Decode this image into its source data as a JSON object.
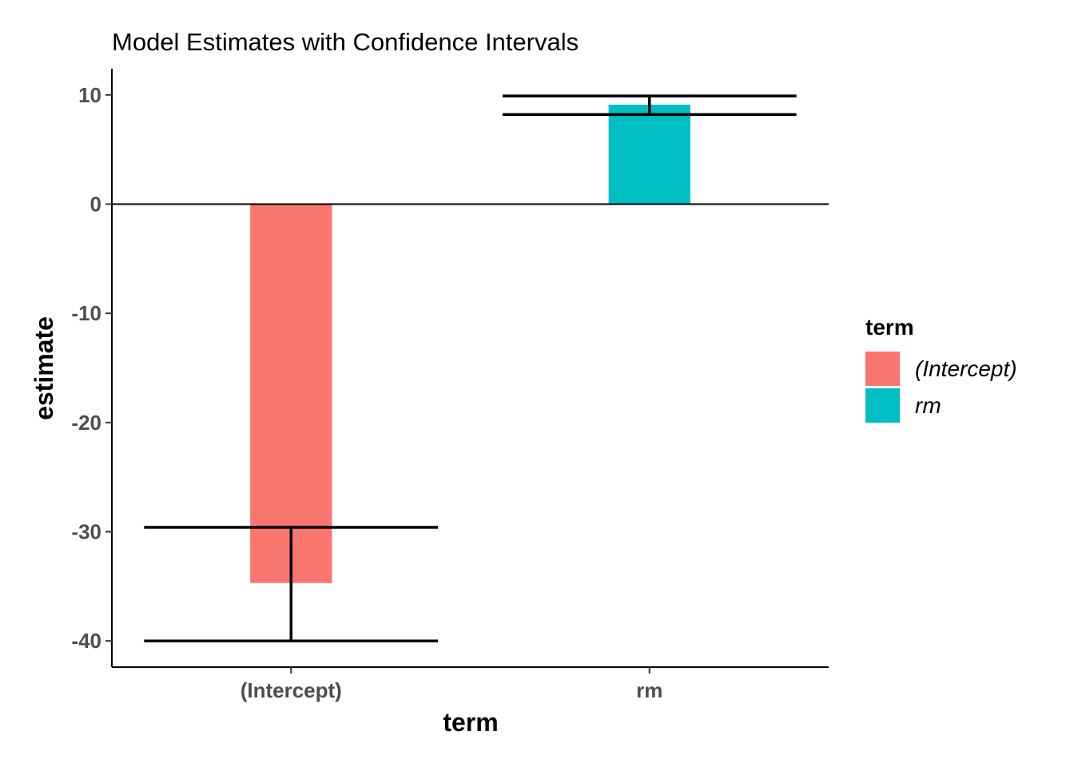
{
  "chart_data": {
    "type": "bar",
    "title": "Model Estimates with Confidence Intervals",
    "xlabel": "term",
    "ylabel": "estimate",
    "categories": [
      "(Intercept)",
      "rm"
    ],
    "values": [
      -34.7,
      9.1
    ],
    "ci_low": [
      -40.0,
      8.2
    ],
    "ci_high": [
      -29.6,
      9.9
    ],
    "colors": [
      "#F8766D",
      "#00BFC4"
    ],
    "ylim": [
      -42.4,
      12.4
    ],
    "yticks": [
      10,
      0,
      -10,
      -20,
      -30,
      -40
    ],
    "ytick_labels": [
      "10",
      "0",
      "-10",
      "-20",
      "-30",
      "-40"
    ],
    "grid": false,
    "zero_line": true,
    "legend": {
      "title": "term",
      "position": "right",
      "entries": [
        "(Intercept)",
        "rm"
      ]
    }
  }
}
